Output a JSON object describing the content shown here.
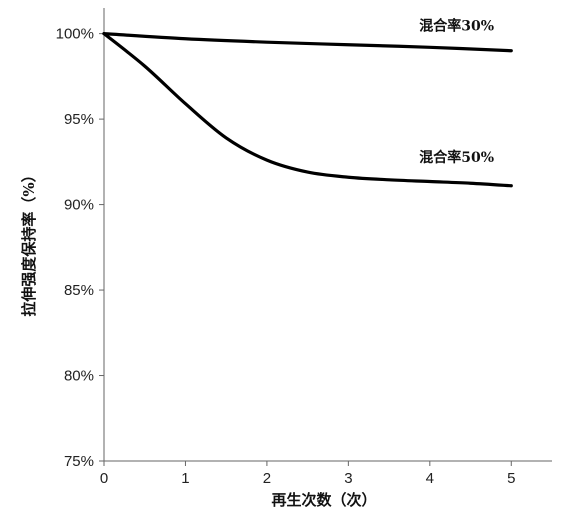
{
  "chart_data": {
    "type": "line",
    "xlabel": "再生次数（次）",
    "ylabel": "拉伸强度保持率（%）",
    "x": [
      0,
      1,
      2,
      3,
      4,
      5
    ],
    "xlim": [
      0,
      5.5
    ],
    "ylim": [
      75,
      101.5
    ],
    "x_ticks": [
      0,
      1,
      2,
      3,
      4,
      5
    ],
    "y_ticks": [
      75,
      80,
      85,
      90,
      95,
      100
    ],
    "y_tick_labels": [
      "75%",
      "80%",
      "85%",
      "90%",
      "95%",
      "100%"
    ],
    "grid": false,
    "legend": "none",
    "series": [
      {
        "name": "混合率30%",
        "x": [
          0,
          1,
          2,
          3,
          4,
          5
        ],
        "values": [
          100,
          99.7,
          99.5,
          99.35,
          99.2,
          99.0
        ],
        "color": "#000000"
      },
      {
        "name": "混合率50%",
        "x": [
          0,
          0.5,
          1,
          1.5,
          2,
          2.5,
          3,
          3.5,
          4,
          4.5,
          5
        ],
        "values": [
          100,
          98.1,
          95.9,
          93.9,
          92.6,
          91.9,
          91.6,
          91.45,
          91.35,
          91.25,
          91.1
        ],
        "color": "#000000"
      }
    ]
  }
}
